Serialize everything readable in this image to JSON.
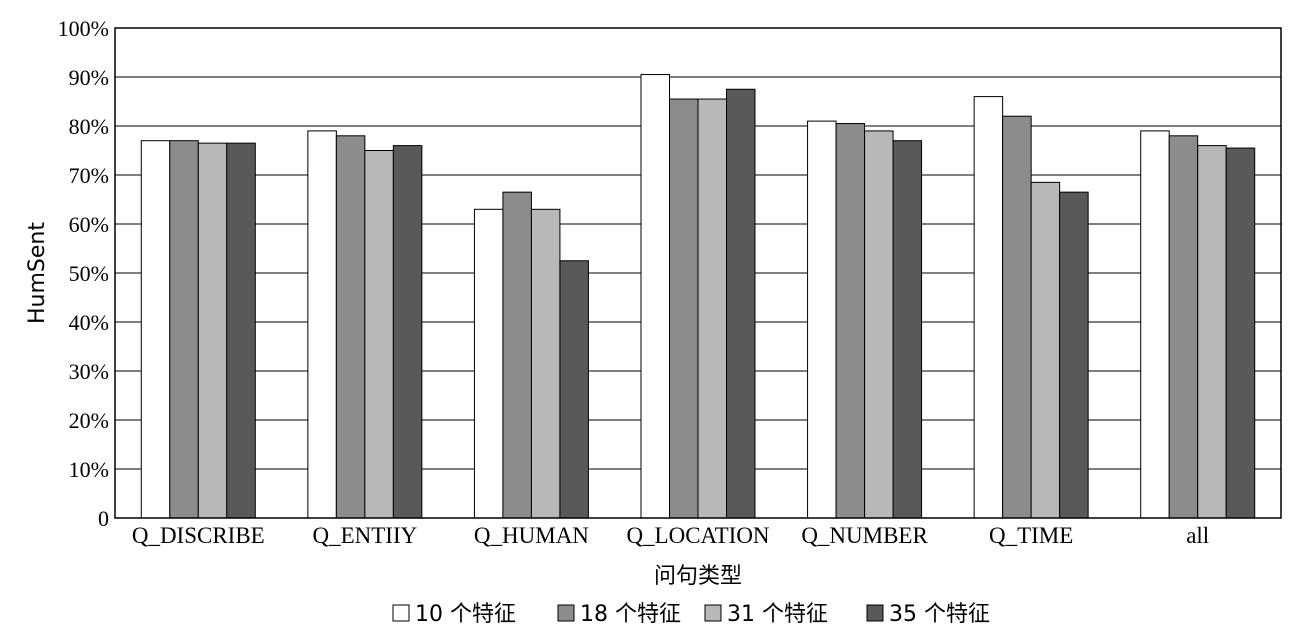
{
  "chart_data": {
    "type": "bar",
    "title": "",
    "xlabel": "问句类型",
    "ylabel": "HumSent",
    "ylim": [
      0,
      100
    ],
    "yticks": [
      "0",
      "10%",
      "20%",
      "30%",
      "40%",
      "50%",
      "60%",
      "70%",
      "80%",
      "90%",
      "100%"
    ],
    "grid": true,
    "legend_position": "bottom",
    "categories": [
      "Q_DISCRIBE",
      "Q_ENTIIY",
      "Q_HUMAN",
      "Q_LOCATION",
      "Q_NUMBER",
      "Q_TIME",
      "all"
    ],
    "series": [
      {
        "name": "10 个特征",
        "color": "#ffffff",
        "values": [
          77.0,
          79.0,
          63.0,
          90.5,
          81.0,
          86.0,
          79.0
        ]
      },
      {
        "name": "18 个特征",
        "color": "#8c8c8c",
        "values": [
          77.0,
          78.0,
          66.5,
          85.5,
          80.5,
          82.0,
          78.0
        ]
      },
      {
        "name": "31 个特征",
        "color": "#b8b8b8",
        "values": [
          76.5,
          75.0,
          63.0,
          85.5,
          79.0,
          68.5,
          76.0
        ]
      },
      {
        "name": "35 个特征",
        "color": "#595959",
        "values": [
          76.5,
          76.0,
          52.5,
          87.5,
          77.0,
          66.5,
          75.5
        ]
      }
    ]
  }
}
